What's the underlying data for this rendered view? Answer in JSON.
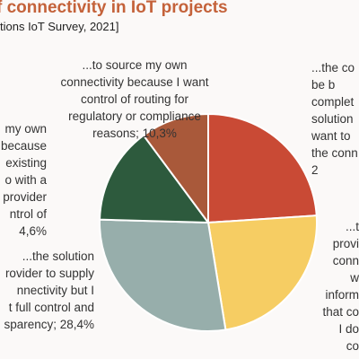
{
  "chart_data": {
    "type": "pie",
    "title": "f connectivity in IoT projects",
    "subtitle": "tions IoT Survey, 2021]",
    "slices": [
      {
        "label_lines": [
          "...the co",
          "be b",
          "complet",
          "solution",
          "want to",
          "the conn",
          "2"
        ],
        "value": 24.3,
        "color": "#c94a35"
      },
      {
        "label_lines": [
          "...t",
          "provi",
          "conn",
          "w",
          "inform",
          "that co",
          "I do",
          "co"
        ],
        "value": 23.8,
        "color": "#f6cd63"
      },
      {
        "label_lines": [
          "...the solution",
          "rovider to supply",
          "nnectivity but I",
          "t full control and",
          "sparency; 28,4%"
        ],
        "value": 28.4,
        "color": "#97aeab"
      },
      {
        "label_lines": [
          "my own",
          "because",
          "existing",
          "o with a",
          "provider",
          "ntrol of",
          "4,6%"
        ],
        "value": 14.6,
        "color": "#2d5a3d"
      },
      {
        "label_lines": [
          "...to source my own",
          "connectivity because I want",
          "control of routing for",
          "regulatory or compliance",
          "reasons; 10,3%"
        ],
        "value": 10.3,
        "color": "#a9593a"
      }
    ]
  }
}
